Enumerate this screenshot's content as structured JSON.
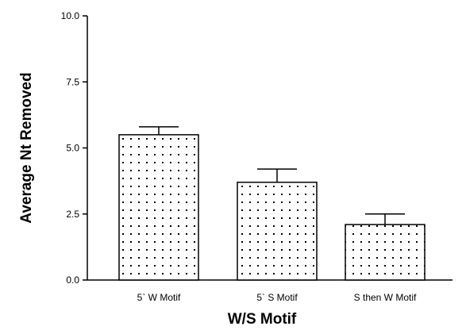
{
  "chart_data": {
    "type": "bar",
    "xlabel": "W/S Motif",
    "ylabel": "Average Nt Removed",
    "ylim": [
      0,
      10
    ],
    "yticks": [
      0,
      2.5,
      5,
      7.5,
      10
    ],
    "ytick_labels": [
      "0.0",
      "2.5",
      "5.0",
      "7.5",
      "10.0"
    ],
    "categories": [
      "5` W Motif",
      "5` S Motif",
      "S then W Motif"
    ],
    "values": [
      5.5,
      3.7,
      2.1
    ],
    "error_upper": [
      0.3,
      0.5,
      0.4
    ],
    "bar_pattern": "dotted",
    "grid": false,
    "legend": "none"
  }
}
